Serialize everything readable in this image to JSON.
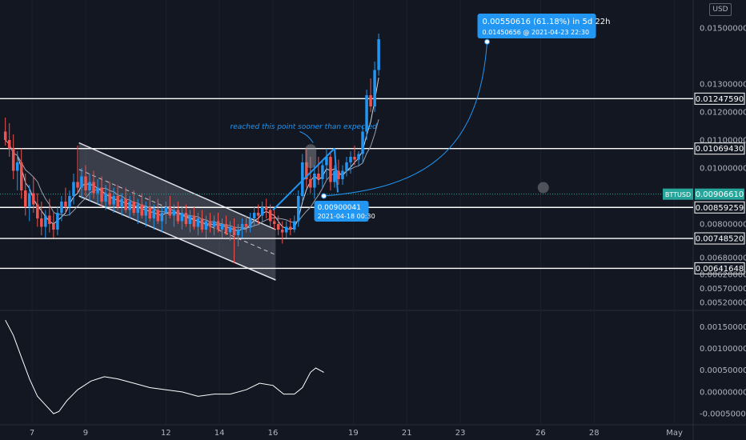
{
  "chart_data": {
    "type": "candlestick",
    "symbol": "BTTUSD",
    "currency": "USD",
    "current_price": 0.0090661,
    "price_axis": {
      "range": [
        0.005,
        0.016
      ],
      "ticks": [
        "0.01500000",
        "0.01300000",
        "0.01200000",
        "0.01100000",
        "0.01000000",
        "0.00800000",
        "0.00680000",
        "0.00620000",
        "0.00570000",
        "0.00520000"
      ]
    },
    "horizontal_levels": [
      {
        "value": 0.0124759,
        "label": "0.01247590"
      },
      {
        "value": 0.0106943,
        "label": "0.01069430"
      },
      {
        "value": 0.00859259,
        "label": "0.00859259"
      },
      {
        "value": 0.0074852,
        "label": "0.00748520"
      },
      {
        "value": 0.00641648,
        "label": "0.00641648"
      }
    ],
    "time_axis": {
      "labels": [
        {
          "day": 7,
          "label": "7"
        },
        {
          "day": 9,
          "label": "9"
        },
        {
          "day": 12,
          "label": "12"
        },
        {
          "day": 14,
          "label": "14"
        },
        {
          "day": 16,
          "label": "16"
        },
        {
          "day": 19,
          "label": "19"
        },
        {
          "day": 21,
          "label": "21"
        },
        {
          "day": 23,
          "label": "23"
        },
        {
          "day": 26,
          "label": "26"
        },
        {
          "day": 28,
          "label": "28"
        },
        {
          "day": 31,
          "label": "May"
        }
      ]
    },
    "candles": [
      {
        "t": 6.0,
        "o": 0.0113,
        "h": 0.0118,
        "l": 0.0108,
        "c": 0.011
      },
      {
        "t": 6.15,
        "o": 0.011,
        "h": 0.0116,
        "l": 0.0104,
        "c": 0.0107
      },
      {
        "t": 6.3,
        "o": 0.0107,
        "h": 0.0112,
        "l": 0.0096,
        "c": 0.0099
      },
      {
        "t": 6.45,
        "o": 0.0099,
        "h": 0.0106,
        "l": 0.0092,
        "c": 0.0102
      },
      {
        "t": 6.6,
        "o": 0.0102,
        "h": 0.0107,
        "l": 0.0089,
        "c": 0.0092
      },
      {
        "t": 6.75,
        "o": 0.0092,
        "h": 0.0098,
        "l": 0.0083,
        "c": 0.0086
      },
      {
        "t": 6.9,
        "o": 0.0086,
        "h": 0.0094,
        "l": 0.0081,
        "c": 0.0091
      },
      {
        "t": 7.05,
        "o": 0.0091,
        "h": 0.0097,
        "l": 0.0084,
        "c": 0.0087
      },
      {
        "t": 7.2,
        "o": 0.0087,
        "h": 0.0091,
        "l": 0.0079,
        "c": 0.0082
      },
      {
        "t": 7.35,
        "o": 0.0082,
        "h": 0.0088,
        "l": 0.0076,
        "c": 0.0079
      },
      {
        "t": 7.5,
        "o": 0.0079,
        "h": 0.0085,
        "l": 0.0075,
        "c": 0.0083
      },
      {
        "t": 7.65,
        "o": 0.0083,
        "h": 0.0089,
        "l": 0.0077,
        "c": 0.008
      },
      {
        "t": 7.8,
        "o": 0.008,
        "h": 0.0084,
        "l": 0.0075,
        "c": 0.0078
      },
      {
        "t": 7.95,
        "o": 0.0078,
        "h": 0.0086,
        "l": 0.0076,
        "c": 0.0084
      },
      {
        "t": 8.1,
        "o": 0.0084,
        "h": 0.009,
        "l": 0.0081,
        "c": 0.0088
      },
      {
        "t": 8.25,
        "o": 0.0088,
        "h": 0.0093,
        "l": 0.0084,
        "c": 0.0086
      },
      {
        "t": 8.4,
        "o": 0.0086,
        "h": 0.0092,
        "l": 0.0083,
        "c": 0.009
      },
      {
        "t": 8.55,
        "o": 0.009,
        "h": 0.0098,
        "l": 0.0087,
        "c": 0.0095
      },
      {
        "t": 8.7,
        "o": 0.0095,
        "h": 0.0108,
        "l": 0.0091,
        "c": 0.0093
      },
      {
        "t": 8.85,
        "o": 0.0093,
        "h": 0.01,
        "l": 0.0089,
        "c": 0.0097
      },
      {
        "t": 9.0,
        "o": 0.0097,
        "h": 0.0101,
        "l": 0.009,
        "c": 0.0092
      },
      {
        "t": 9.15,
        "o": 0.0092,
        "h": 0.0098,
        "l": 0.0088,
        "c": 0.0095
      },
      {
        "t": 9.3,
        "o": 0.0095,
        "h": 0.0099,
        "l": 0.0089,
        "c": 0.0091
      },
      {
        "t": 9.45,
        "o": 0.0091,
        "h": 0.0096,
        "l": 0.0087,
        "c": 0.0093
      },
      {
        "t": 9.6,
        "o": 0.0093,
        "h": 0.0097,
        "l": 0.0086,
        "c": 0.0088
      },
      {
        "t": 9.75,
        "o": 0.0088,
        "h": 0.0094,
        "l": 0.0085,
        "c": 0.0091
      },
      {
        "t": 9.9,
        "o": 0.0091,
        "h": 0.0095,
        "l": 0.0086,
        "c": 0.0087
      },
      {
        "t": 10.05,
        "o": 0.0087,
        "h": 0.0093,
        "l": 0.0084,
        "c": 0.009
      },
      {
        "t": 10.2,
        "o": 0.009,
        "h": 0.0094,
        "l": 0.0085,
        "c": 0.0086
      },
      {
        "t": 10.35,
        "o": 0.0086,
        "h": 0.0091,
        "l": 0.0083,
        "c": 0.0089
      },
      {
        "t": 10.5,
        "o": 0.0089,
        "h": 0.0093,
        "l": 0.0084,
        "c": 0.0085
      },
      {
        "t": 10.65,
        "o": 0.0085,
        "h": 0.009,
        "l": 0.0082,
        "c": 0.0088
      },
      {
        "t": 10.8,
        "o": 0.0088,
        "h": 0.0092,
        "l": 0.0083,
        "c": 0.0084
      },
      {
        "t": 10.95,
        "o": 0.0084,
        "h": 0.0089,
        "l": 0.008,
        "c": 0.0087
      },
      {
        "t": 11.1,
        "o": 0.0087,
        "h": 0.0091,
        "l": 0.0082,
        "c": 0.0083
      },
      {
        "t": 11.25,
        "o": 0.0083,
        "h": 0.0088,
        "l": 0.0079,
        "c": 0.0086
      },
      {
        "t": 11.4,
        "o": 0.0086,
        "h": 0.009,
        "l": 0.0081,
        "c": 0.0082
      },
      {
        "t": 11.55,
        "o": 0.0082,
        "h": 0.0087,
        "l": 0.0078,
        "c": 0.0085
      },
      {
        "t": 11.7,
        "o": 0.0085,
        "h": 0.0089,
        "l": 0.008,
        "c": 0.0081
      },
      {
        "t": 11.85,
        "o": 0.0081,
        "h": 0.0086,
        "l": 0.0077,
        "c": 0.0084
      },
      {
        "t": 12.0,
        "o": 0.0084,
        "h": 0.0088,
        "l": 0.008,
        "c": 0.0086
      },
      {
        "t": 12.15,
        "o": 0.0086,
        "h": 0.009,
        "l": 0.0082,
        "c": 0.0083
      },
      {
        "t": 12.3,
        "o": 0.0083,
        "h": 0.0087,
        "l": 0.0079,
        "c": 0.0085
      },
      {
        "t": 12.45,
        "o": 0.0085,
        "h": 0.0088,
        "l": 0.008,
        "c": 0.0081
      },
      {
        "t": 12.6,
        "o": 0.0081,
        "h": 0.0086,
        "l": 0.0078,
        "c": 0.0084
      },
      {
        "t": 12.75,
        "o": 0.0084,
        "h": 0.0087,
        "l": 0.0079,
        "c": 0.008
      },
      {
        "t": 12.9,
        "o": 0.008,
        "h": 0.0085,
        "l": 0.0077,
        "c": 0.0083
      },
      {
        "t": 13.05,
        "o": 0.0083,
        "h": 0.0086,
        "l": 0.0078,
        "c": 0.0079
      },
      {
        "t": 13.2,
        "o": 0.0079,
        "h": 0.0084,
        "l": 0.0076,
        "c": 0.0082
      },
      {
        "t": 13.35,
        "o": 0.0082,
        "h": 0.0085,
        "l": 0.0077,
        "c": 0.0078
      },
      {
        "t": 13.5,
        "o": 0.0078,
        "h": 0.0083,
        "l": 0.0075,
        "c": 0.0081
      },
      {
        "t": 13.65,
        "o": 0.0081,
        "h": 0.0084,
        "l": 0.0077,
        "c": 0.0079
      },
      {
        "t": 13.8,
        "o": 0.0079,
        "h": 0.0083,
        "l": 0.0076,
        "c": 0.0081
      },
      {
        "t": 13.95,
        "o": 0.0081,
        "h": 0.0084,
        "l": 0.0077,
        "c": 0.0078
      },
      {
        "t": 14.1,
        "o": 0.0078,
        "h": 0.0082,
        "l": 0.0075,
        "c": 0.008
      },
      {
        "t": 14.25,
        "o": 0.008,
        "h": 0.0083,
        "l": 0.0076,
        "c": 0.0077
      },
      {
        "t": 14.4,
        "o": 0.0077,
        "h": 0.0081,
        "l": 0.0074,
        "c": 0.0079
      },
      {
        "t": 14.55,
        "o": 0.0079,
        "h": 0.0082,
        "l": 0.0066,
        "c": 0.0076
      },
      {
        "t": 14.7,
        "o": 0.0076,
        "h": 0.008,
        "l": 0.0072,
        "c": 0.0078
      },
      {
        "t": 14.85,
        "o": 0.0078,
        "h": 0.0082,
        "l": 0.0075,
        "c": 0.008
      },
      {
        "t": 15.0,
        "o": 0.008,
        "h": 0.0083,
        "l": 0.0077,
        "c": 0.0079
      },
      {
        "t": 15.15,
        "o": 0.0079,
        "h": 0.0084,
        "l": 0.0077,
        "c": 0.0082
      },
      {
        "t": 15.3,
        "o": 0.0082,
        "h": 0.0086,
        "l": 0.0079,
        "c": 0.0084
      },
      {
        "t": 15.45,
        "o": 0.0084,
        "h": 0.0087,
        "l": 0.008,
        "c": 0.0083
      },
      {
        "t": 15.6,
        "o": 0.0083,
        "h": 0.0088,
        "l": 0.0081,
        "c": 0.0086
      },
      {
        "t": 15.75,
        "o": 0.0086,
        "h": 0.0089,
        "l": 0.0082,
        "c": 0.0085
      },
      {
        "t": 15.9,
        "o": 0.0085,
        "h": 0.0087,
        "l": 0.0079,
        "c": 0.0081
      },
      {
        "t": 16.05,
        "o": 0.0081,
        "h": 0.0085,
        "l": 0.0078,
        "c": 0.008
      },
      {
        "t": 16.2,
        "o": 0.008,
        "h": 0.0083,
        "l": 0.0076,
        "c": 0.0078
      },
      {
        "t": 16.35,
        "o": 0.0078,
        "h": 0.0081,
        "l": 0.0073,
        "c": 0.0077
      },
      {
        "t": 16.5,
        "o": 0.0077,
        "h": 0.0081,
        "l": 0.0075,
        "c": 0.0079
      },
      {
        "t": 16.65,
        "o": 0.0079,
        "h": 0.0082,
        "l": 0.0076,
        "c": 0.0078
      },
      {
        "t": 16.8,
        "o": 0.0078,
        "h": 0.0083,
        "l": 0.0077,
        "c": 0.0081
      },
      {
        "t": 16.95,
        "o": 0.0081,
        "h": 0.0092,
        "l": 0.0079,
        "c": 0.009
      },
      {
        "t": 17.1,
        "o": 0.009,
        "h": 0.0105,
        "l": 0.0088,
        "c": 0.0102
      },
      {
        "t": 17.25,
        "o": 0.0102,
        "h": 0.0107,
        "l": 0.0093,
        "c": 0.0096
      },
      {
        "t": 17.4,
        "o": 0.0096,
        "h": 0.0104,
        "l": 0.0091,
        "c": 0.0093
      },
      {
        "t": 17.55,
        "o": 0.0093,
        "h": 0.0101,
        "l": 0.0089,
        "c": 0.0098
      },
      {
        "t": 17.7,
        "o": 0.0098,
        "h": 0.0104,
        "l": 0.0094,
        "c": 0.0096
      },
      {
        "t": 17.85,
        "o": 0.0096,
        "h": 0.0103,
        "l": 0.0093,
        "c": 0.0101
      },
      {
        "t": 18.0,
        "o": 0.0101,
        "h": 0.0107,
        "l": 0.0096,
        "c": 0.0104
      },
      {
        "t": 18.15,
        "o": 0.0104,
        "h": 0.0106,
        "l": 0.0092,
        "c": 0.0095
      },
      {
        "t": 18.3,
        "o": 0.0095,
        "h": 0.0101,
        "l": 0.0093,
        "c": 0.0099
      },
      {
        "t": 18.45,
        "o": 0.0099,
        "h": 0.0103,
        "l": 0.0094,
        "c": 0.0096
      },
      {
        "t": 18.6,
        "o": 0.0096,
        "h": 0.0101,
        "l": 0.0094,
        "c": 0.0099
      },
      {
        "t": 18.75,
        "o": 0.0099,
        "h": 0.0104,
        "l": 0.0097,
        "c": 0.0102
      },
      {
        "t": 18.9,
        "o": 0.0102,
        "h": 0.0106,
        "l": 0.0098,
        "c": 0.0104
      },
      {
        "t": 19.05,
        "o": 0.0104,
        "h": 0.0108,
        "l": 0.0101,
        "c": 0.0103
      },
      {
        "t": 19.2,
        "o": 0.0103,
        "h": 0.0106,
        "l": 0.0101,
        "c": 0.0105
      },
      {
        "t": 19.35,
        "o": 0.0105,
        "h": 0.0115,
        "l": 0.0102,
        "c": 0.0113
      },
      {
        "t": 19.5,
        "o": 0.0113,
        "h": 0.0128,
        "l": 0.011,
        "c": 0.0126
      },
      {
        "t": 19.65,
        "o": 0.0126,
        "h": 0.0132,
        "l": 0.012,
        "c": 0.0122
      },
      {
        "t": 19.8,
        "o": 0.0122,
        "h": 0.0138,
        "l": 0.012,
        "c": 0.0135
      },
      {
        "t": 19.95,
        "o": 0.0135,
        "h": 0.0148,
        "l": 0.0133,
        "c": 0.0146
      }
    ],
    "channel": {
      "upper_start": {
        "t": 8.75,
        "p": 0.0109
      },
      "upper_end": {
        "t": 16.1,
        "p": 0.0078
      },
      "lower_start": {
        "t": 8.75,
        "p": 0.009
      },
      "lower_end": {
        "t": 16.1,
        "p": 0.006
      }
    },
    "trend_line": {
      "start": {
        "t": 16.0,
        "p": 0.0085
      },
      "end": {
        "t": 18.3,
        "p": 0.0107
      }
    },
    "annotation_text": "reached this point sooner than expected",
    "projection": {
      "start": {
        "t": 17.9,
        "p": 0.009
      },
      "end": {
        "t": 24.0,
        "p": 0.01450656
      },
      "callout_primary": "0.00550616 (61.18%) in 5d 22h",
      "callout_secondary": "0.01450656 @ 2021-04-23  22:30"
    },
    "start_callout": {
      "price": "0.00900041",
      "time": "2021-04-18 00:30"
    },
    "oscillator": {
      "range": [
        -0.0007,
        0.0018
      ],
      "ticks": [
        "0.00150000",
        "0.00100000",
        "0.00050000",
        "0.00000000",
        "-0.00050000"
      ],
      "points": [
        {
          "t": 6.0,
          "v": 0.00165
        },
        {
          "t": 6.3,
          "v": 0.0013
        },
        {
          "t": 6.6,
          "v": 0.0008
        },
        {
          "t": 6.9,
          "v": 0.0003
        },
        {
          "t": 7.2,
          "v": -0.0001
        },
        {
          "t": 7.5,
          "v": -0.0003
        },
        {
          "t": 7.8,
          "v": -0.0005
        },
        {
          "t": 8.0,
          "v": -0.00045
        },
        {
          "t": 8.3,
          "v": -0.0002
        },
        {
          "t": 8.7,
          "v": 5e-05
        },
        {
          "t": 9.2,
          "v": 0.00025
        },
        {
          "t": 9.7,
          "v": 0.00035
        },
        {
          "t": 10.2,
          "v": 0.0003
        },
        {
          "t": 10.8,
          "v": 0.0002
        },
        {
          "t": 11.4,
          "v": 0.0001
        },
        {
          "t": 12.0,
          "v": 5e-05
        },
        {
          "t": 12.6,
          "v": 0.0
        },
        {
          "t": 13.2,
          "v": -0.0001
        },
        {
          "t": 13.8,
          "v": -5e-05
        },
        {
          "t": 14.4,
          "v": -5e-05
        },
        {
          "t": 15.0,
          "v": 5e-05
        },
        {
          "t": 15.5,
          "v": 0.0002
        },
        {
          "t": 16.0,
          "v": 0.00015
        },
        {
          "t": 16.4,
          "v": -5e-05
        },
        {
          "t": 16.8,
          "v": -5e-05
        },
        {
          "t": 17.1,
          "v": 0.0001
        },
        {
          "t": 17.4,
          "v": 0.00045
        },
        {
          "t": 17.6,
          "v": 0.00055
        },
        {
          "t": 17.9,
          "v": 0.00045
        }
      ]
    },
    "colors": {
      "background": "#131722",
      "up": "#2196f3",
      "down": "#ef5350",
      "text": "#b2b5be",
      "level_line": "#ffffff",
      "accent": "#2196f3",
      "price_badge": "#26a69a"
    }
  }
}
